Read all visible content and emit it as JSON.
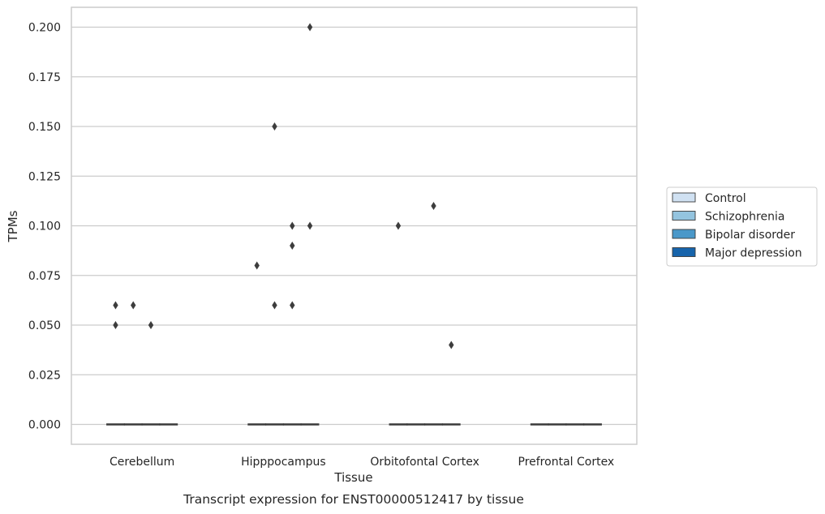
{
  "caption": "Transcript expression for ENST00000512417 by tissue",
  "chart_data": {
    "type": "box",
    "title": "",
    "xlabel": "Tissue",
    "ylabel": "TPMs",
    "ylim": [
      -0.01,
      0.21
    ],
    "yticks": [
      0.0,
      0.025,
      0.05,
      0.075,
      0.1,
      0.125,
      0.15,
      0.175,
      0.2
    ],
    "ytick_labels": [
      "0.000",
      "0.025",
      "0.050",
      "0.075",
      "0.100",
      "0.125",
      "0.150",
      "0.175",
      "0.200"
    ],
    "grid": "horizontal",
    "legend_position": "right",
    "categories": [
      "Cerebellum",
      "Hipppocampus",
      "Orbitofontal Cortex",
      "Prefrontal Cortex"
    ],
    "series": [
      {
        "name": "Control",
        "color": "#d0e1f2",
        "median": [
          0,
          0,
          0,
          0
        ],
        "outliers": [
          [
            0.06,
            0.05
          ],
          [
            0.08
          ],
          [
            0.1
          ],
          []
        ]
      },
      {
        "name": "Schizophrenia",
        "color": "#94c4df",
        "median": [
          0,
          0,
          0,
          0
        ],
        "outliers": [
          [
            0.06
          ],
          [
            0.15,
            0.06
          ],
          [],
          []
        ]
      },
      {
        "name": "Bipolar disorder",
        "color": "#4a98c9",
        "median": [
          0,
          0,
          0,
          0
        ],
        "outliers": [
          [
            0.05
          ],
          [
            0.1,
            0.09,
            0.06
          ],
          [
            0.11
          ],
          []
        ]
      },
      {
        "name": "Major depression",
        "color": "#1764ab",
        "median": [
          0,
          0,
          0,
          0
        ],
        "outliers": [
          [],
          [
            0.2,
            0.1
          ],
          [
            0.04
          ],
          []
        ]
      }
    ]
  }
}
